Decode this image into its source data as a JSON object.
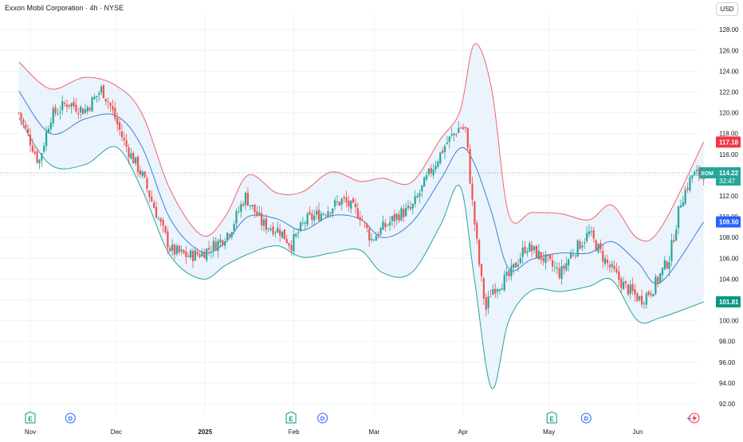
{
  "header": {
    "title": "Exxon Mobil Corporation · 4h · NYSE",
    "currency": "USD"
  },
  "chart_data": {
    "type": "candlestick",
    "symbol": "XOM",
    "indicator": "Bollinger Bands",
    "y_ticks": [
      "128.00",
      "126.00",
      "124.00",
      "122.00",
      "120.00",
      "118.00",
      "116.00",
      "114.00",
      "112.00",
      "110.00",
      "108.00",
      "106.00",
      "104.00",
      "102.00",
      "100.00",
      "98.00",
      "96.00",
      "94.00",
      "92.00"
    ],
    "x_ticks": [
      "Nov",
      "Dec",
      "2025",
      "Feb",
      "Mar",
      "Apr",
      "May",
      "Jun"
    ],
    "ylim": [
      92,
      128
    ],
    "price_labels": {
      "upper_band": "117.18",
      "last_price": "114.22",
      "countdown": "32:47",
      "basis": "109.50",
      "lower_band": "101.81"
    },
    "events": [
      {
        "type": "E",
        "near": "Nov"
      },
      {
        "type": "D",
        "near": "Nov"
      },
      {
        "type": "E",
        "near": "Feb"
      },
      {
        "type": "D",
        "near": "Feb"
      },
      {
        "type": "E",
        "near": "May"
      },
      {
        "type": "D",
        "near": "May"
      }
    ],
    "close_path": [
      {
        "d": "2024-10-28",
        "v": 120.0
      },
      {
        "d": "2024-11-01",
        "v": 117.3
      },
      {
        "d": "2024-11-04",
        "v": 115.2
      },
      {
        "d": "2024-11-08",
        "v": 119.6
      },
      {
        "d": "2024-11-14",
        "v": 121.0
      },
      {
        "d": "2024-11-20",
        "v": 120.2
      },
      {
        "d": "2024-11-26",
        "v": 122.3
      },
      {
        "d": "2024-11-29",
        "v": 120.6
      },
      {
        "d": "2024-12-04",
        "v": 117.0
      },
      {
        "d": "2024-12-10",
        "v": 114.0
      },
      {
        "d": "2024-12-16",
        "v": 109.6
      },
      {
        "d": "2024-12-20",
        "v": 106.8
      },
      {
        "d": "2024-12-26",
        "v": 106.2
      },
      {
        "d": "2024-12-31",
        "v": 106.5
      },
      {
        "d": "2025-01-06",
        "v": 107.6
      },
      {
        "d": "2025-01-10",
        "v": 108.8
      },
      {
        "d": "2025-01-15",
        "v": 112.0
      },
      {
        "d": "2025-01-21",
        "v": 109.3
      },
      {
        "d": "2025-01-27",
        "v": 108.7
      },
      {
        "d": "2025-01-31",
        "v": 107.3
      },
      {
        "d": "2025-02-05",
        "v": 109.6
      },
      {
        "d": "2025-02-11",
        "v": 110.4
      },
      {
        "d": "2025-02-18",
        "v": 111.6
      },
      {
        "d": "2025-02-24",
        "v": 110.2
      },
      {
        "d": "2025-02-28",
        "v": 107.8
      },
      {
        "d": "2025-03-04",
        "v": 108.9
      },
      {
        "d": "2025-03-10",
        "v": 110.3
      },
      {
        "d": "2025-03-14",
        "v": 110.7
      },
      {
        "d": "2025-03-20",
        "v": 114.0
      },
      {
        "d": "2025-03-26",
        "v": 117.0
      },
      {
        "d": "2025-03-31",
        "v": 118.7
      },
      {
        "d": "2025-04-02",
        "v": 118.3
      },
      {
        "d": "2025-04-04",
        "v": 112.0
      },
      {
        "d": "2025-04-07",
        "v": 104.6
      },
      {
        "d": "2025-04-09",
        "v": 101.0
      },
      {
        "d": "2025-04-11",
        "v": 103.0
      },
      {
        "d": "2025-04-17",
        "v": 104.2
      },
      {
        "d": "2025-04-23",
        "v": 107.2
      },
      {
        "d": "2025-04-29",
        "v": 106.0
      },
      {
        "d": "2025-05-05",
        "v": 104.5
      },
      {
        "d": "2025-05-09",
        "v": 106.5
      },
      {
        "d": "2025-05-15",
        "v": 108.4
      },
      {
        "d": "2025-05-21",
        "v": 105.6
      },
      {
        "d": "2025-05-27",
        "v": 103.4
      },
      {
        "d": "2025-06-02",
        "v": 102.0
      },
      {
        "d": "2025-06-06",
        "v": 103.0
      },
      {
        "d": "2025-06-12",
        "v": 106.0
      },
      {
        "d": "2025-06-16",
        "v": 111.5
      },
      {
        "d": "2025-06-20",
        "v": 114.0
      },
      {
        "d": "2025-06-24",
        "v": 114.2
      }
    ],
    "upper_band_path": [
      {
        "d": "2024-10-28",
        "v": 124.9
      },
      {
        "d": "2024-11-08",
        "v": 122.3
      },
      {
        "d": "2024-11-20",
        "v": 123.4
      },
      {
        "d": "2024-12-01",
        "v": 122.6
      },
      {
        "d": "2024-12-10",
        "v": 119.9
      },
      {
        "d": "2024-12-20",
        "v": 112.5
      },
      {
        "d": "2024-12-31",
        "v": 108.2
      },
      {
        "d": "2025-01-08",
        "v": 110.0
      },
      {
        "d": "2025-01-16",
        "v": 114.0
      },
      {
        "d": "2025-01-26",
        "v": 112.3
      },
      {
        "d": "2025-02-04",
        "v": 112.4
      },
      {
        "d": "2025-02-14",
        "v": 114.3
      },
      {
        "d": "2025-02-24",
        "v": 113.4
      },
      {
        "d": "2025-03-04",
        "v": 113.7
      },
      {
        "d": "2025-03-14",
        "v": 113.3
      },
      {
        "d": "2025-03-24",
        "v": 117.4
      },
      {
        "d": "2025-03-31",
        "v": 120.2
      },
      {
        "d": "2025-04-05",
        "v": 126.6
      },
      {
        "d": "2025-04-11",
        "v": 122.3
      },
      {
        "d": "2025-04-17",
        "v": 110.2
      },
      {
        "d": "2025-04-25",
        "v": 110.4
      },
      {
        "d": "2025-05-05",
        "v": 110.3
      },
      {
        "d": "2025-05-15",
        "v": 109.7
      },
      {
        "d": "2025-05-23",
        "v": 111.1
      },
      {
        "d": "2025-06-01",
        "v": 107.9
      },
      {
        "d": "2025-06-09",
        "v": 108.9
      },
      {
        "d": "2025-06-24",
        "v": 117.2
      }
    ],
    "basis_path": [
      {
        "d": "2024-10-28",
        "v": 122.1
      },
      {
        "d": "2024-11-08",
        "v": 118.0
      },
      {
        "d": "2024-11-20",
        "v": 119.4
      },
      {
        "d": "2024-12-01",
        "v": 119.7
      },
      {
        "d": "2024-12-10",
        "v": 116.7
      },
      {
        "d": "2024-12-20",
        "v": 109.7
      },
      {
        "d": "2024-12-31",
        "v": 106.6
      },
      {
        "d": "2025-01-08",
        "v": 107.5
      },
      {
        "d": "2025-01-16",
        "v": 110.0
      },
      {
        "d": "2025-01-26",
        "v": 109.8
      },
      {
        "d": "2025-02-04",
        "v": 108.7
      },
      {
        "d": "2025-02-14",
        "v": 110.1
      },
      {
        "d": "2025-02-24",
        "v": 109.8
      },
      {
        "d": "2025-03-04",
        "v": 108.0
      },
      {
        "d": "2025-03-14",
        "v": 109.4
      },
      {
        "d": "2025-03-24",
        "v": 113.5
      },
      {
        "d": "2025-03-31",
        "v": 116.6
      },
      {
        "d": "2025-04-05",
        "v": 115.1
      },
      {
        "d": "2025-04-11",
        "v": 110.4
      },
      {
        "d": "2025-04-17",
        "v": 105.0
      },
      {
        "d": "2025-04-25",
        "v": 105.9
      },
      {
        "d": "2025-05-05",
        "v": 106.5
      },
      {
        "d": "2025-05-15",
        "v": 106.5
      },
      {
        "d": "2025-05-23",
        "v": 107.6
      },
      {
        "d": "2025-06-01",
        "v": 105.6
      },
      {
        "d": "2025-06-09",
        "v": 103.7
      },
      {
        "d": "2025-06-24",
        "v": 109.5
      }
    ],
    "lower_band_path": [
      {
        "d": "2024-10-28",
        "v": 119.5
      },
      {
        "d": "2024-11-08",
        "v": 115.0
      },
      {
        "d": "2024-11-20",
        "v": 115.0
      },
      {
        "d": "2024-12-01",
        "v": 116.7
      },
      {
        "d": "2024-12-10",
        "v": 112.6
      },
      {
        "d": "2024-12-20",
        "v": 106.2
      },
      {
        "d": "2024-12-31",
        "v": 104.0
      },
      {
        "d": "2025-01-08",
        "v": 105.3
      },
      {
        "d": "2025-01-16",
        "v": 106.4
      },
      {
        "d": "2025-01-26",
        "v": 107.2
      },
      {
        "d": "2025-02-04",
        "v": 106.1
      },
      {
        "d": "2025-02-14",
        "v": 106.5
      },
      {
        "d": "2025-02-24",
        "v": 106.8
      },
      {
        "d": "2025-03-04",
        "v": 104.6
      },
      {
        "d": "2025-03-14",
        "v": 104.6
      },
      {
        "d": "2025-03-24",
        "v": 109.1
      },
      {
        "d": "2025-03-31",
        "v": 112.9
      },
      {
        "d": "2025-04-05",
        "v": 104.0
      },
      {
        "d": "2025-04-11",
        "v": 93.5
      },
      {
        "d": "2025-04-17",
        "v": 100.0
      },
      {
        "d": "2025-04-25",
        "v": 102.9
      },
      {
        "d": "2025-05-05",
        "v": 102.8
      },
      {
        "d": "2025-05-15",
        "v": 103.3
      },
      {
        "d": "2025-05-23",
        "v": 103.9
      },
      {
        "d": "2025-06-01",
        "v": 100.0
      },
      {
        "d": "2025-06-09",
        "v": 100.3
      },
      {
        "d": "2025-06-24",
        "v": 101.8
      }
    ]
  },
  "colors": {
    "up": "#26a69a",
    "down": "#ef5350",
    "upper_band": "#f0646e",
    "basis": "#3f7fd6",
    "lower_band": "#26a69a",
    "band_fill": "#e8f1fb",
    "last_price_line": "#26a69a",
    "upper_label": "#f23645",
    "basis_label": "#2962ff",
    "lower_label": "#089981",
    "grid": "#f0f3fa",
    "axis_text": "#131722"
  }
}
